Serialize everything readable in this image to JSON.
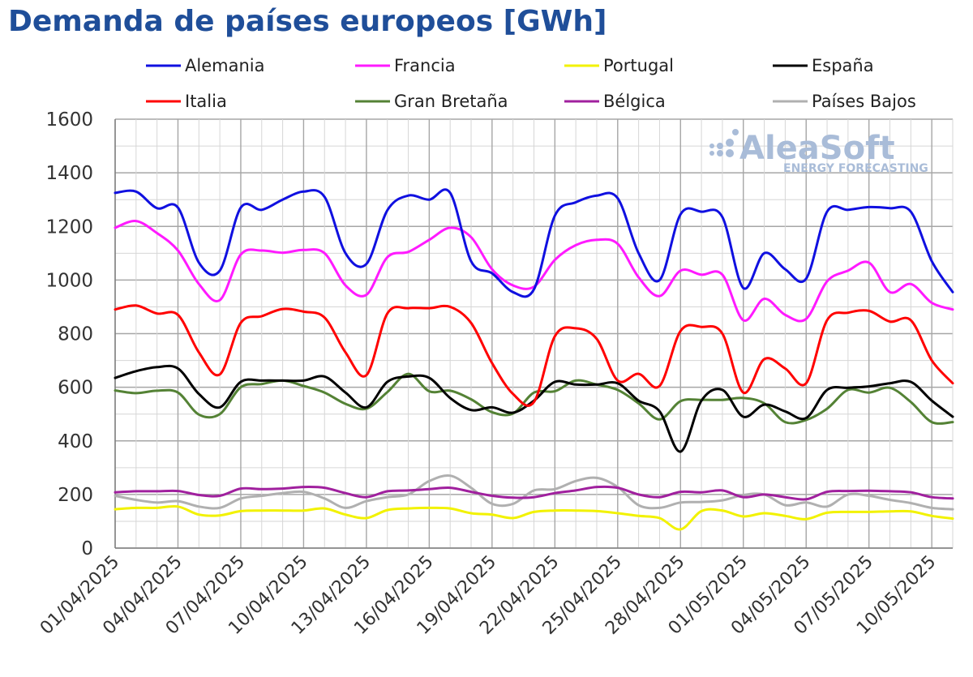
{
  "chart_data": {
    "type": "line",
    "title": "Demanda de países europeos [GWh]",
    "xlabel": "",
    "ylabel": "",
    "ylim": [
      0,
      1600
    ],
    "yticks": [
      0,
      200,
      400,
      600,
      800,
      1000,
      1200,
      1400,
      1600
    ],
    "grid": true,
    "legend_position": "top",
    "x": [
      "01/04/2025",
      "02/04/2025",
      "03/04/2025",
      "04/04/2025",
      "05/04/2025",
      "06/04/2025",
      "07/04/2025",
      "08/04/2025",
      "09/04/2025",
      "10/04/2025",
      "11/04/2025",
      "12/04/2025",
      "13/04/2025",
      "14/04/2025",
      "15/04/2025",
      "16/04/2025",
      "17/04/2025",
      "18/04/2025",
      "19/04/2025",
      "20/04/2025",
      "21/04/2025",
      "22/04/2025",
      "23/04/2025",
      "24/04/2025",
      "25/04/2025",
      "26/04/2025",
      "27/04/2025",
      "28/04/2025",
      "29/04/2025",
      "30/04/2025",
      "01/05/2025",
      "02/05/2025",
      "03/05/2025",
      "04/05/2025",
      "05/05/2025",
      "06/05/2025",
      "07/05/2025",
      "08/05/2025",
      "09/05/2025",
      "10/05/2025",
      "11/05/2025"
    ],
    "x_tick_labels": [
      "01/04/2025",
      "04/04/2025",
      "07/04/2025",
      "10/04/2025",
      "13/04/2025",
      "16/04/2025",
      "19/04/2025",
      "22/04/2025",
      "25/04/2025",
      "28/04/2025",
      "01/05/2025",
      "04/05/2025",
      "07/05/2025",
      "10/05/2025"
    ],
    "series": [
      {
        "name": "Alemania",
        "color": "#1010e0",
        "values": [
          1325,
          1330,
          1268,
          1270,
          1065,
          1035,
          1270,
          1262,
          1300,
          1330,
          1310,
          1100,
          1060,
          1260,
          1315,
          1300,
          1325,
          1070,
          1025,
          955,
          965,
          1240,
          1290,
          1315,
          1305,
          1100,
          1000,
          1245,
          1255,
          1235,
          970,
          1100,
          1040,
          1005,
          1255,
          1262,
          1272,
          1268,
          1255,
          1070,
          955
        ]
      },
      {
        "name": "Francia",
        "color": "#ff1aff",
        "values": [
          1195,
          1220,
          1175,
          1110,
          985,
          925,
          1095,
          1110,
          1102,
          1112,
          1100,
          980,
          945,
          1085,
          1105,
          1150,
          1195,
          1160,
          1040,
          980,
          975,
          1075,
          1130,
          1150,
          1135,
          1010,
          940,
          1035,
          1020,
          1020,
          850,
          930,
          870,
          855,
          995,
          1035,
          1065,
          955,
          985,
          915,
          890
        ]
      },
      {
        "name": "Portugal",
        "color": "#f2f200",
        "values": [
          145,
          150,
          150,
          155,
          125,
          122,
          138,
          140,
          140,
          140,
          148,
          125,
          112,
          142,
          148,
          150,
          148,
          130,
          125,
          112,
          135,
          140,
          140,
          138,
          130,
          120,
          112,
          70,
          138,
          140,
          118,
          130,
          120,
          108,
          132,
          135,
          135,
          137,
          137,
          120,
          110
        ]
      },
      {
        "name": "España",
        "color": "#000000",
        "values": [
          635,
          660,
          675,
          670,
          575,
          525,
          620,
          625,
          625,
          625,
          640,
          580,
          525,
          620,
          640,
          635,
          560,
          515,
          525,
          505,
          550,
          620,
          610,
          610,
          615,
          550,
          510,
          360,
          550,
          590,
          490,
          535,
          510,
          485,
          590,
          598,
          603,
          615,
          620,
          550,
          490
        ]
      },
      {
        "name": "Italia",
        "color": "#ff0000",
        "values": [
          890,
          905,
          875,
          870,
          730,
          648,
          840,
          865,
          892,
          882,
          860,
          730,
          645,
          875,
          895,
          895,
          900,
          840,
          690,
          575,
          545,
          790,
          820,
          780,
          625,
          650,
          605,
          810,
          825,
          800,
          580,
          705,
          670,
          615,
          850,
          878,
          885,
          845,
          850,
          700,
          615
        ]
      },
      {
        "name": "Gran Bretaña",
        "color": "#548235",
        "values": [
          588,
          578,
          587,
          580,
          498,
          500,
          600,
          612,
          625,
          605,
          580,
          538,
          520,
          582,
          650,
          585,
          587,
          555,
          507,
          502,
          580,
          585,
          625,
          610,
          590,
          540,
          480,
          548,
          553,
          553,
          560,
          540,
          470,
          478,
          520,
          590,
          580,
          598,
          545,
          470,
          470
        ]
      },
      {
        "name": "Bélgica",
        "color": "#a0209e",
        "values": [
          208,
          212,
          212,
          213,
          198,
          195,
          222,
          220,
          222,
          228,
          225,
          205,
          190,
          212,
          215,
          220,
          225,
          210,
          195,
          188,
          190,
          205,
          215,
          228,
          225,
          200,
          190,
          210,
          208,
          215,
          190,
          200,
          190,
          182,
          210,
          213,
          214,
          212,
          208,
          190,
          185
        ]
      },
      {
        "name": "Países Bajos",
        "color": "#b0b0b0",
        "values": [
          195,
          180,
          170,
          175,
          155,
          150,
          185,
          195,
          205,
          210,
          185,
          150,
          175,
          190,
          200,
          250,
          270,
          225,
          165,
          165,
          215,
          220,
          250,
          262,
          228,
          160,
          150,
          170,
          172,
          178,
          198,
          200,
          160,
          170,
          155,
          200,
          195,
          180,
          168,
          150,
          145
        ]
      }
    ]
  },
  "watermark": {
    "brand": "AleaSoft",
    "tagline": "ENERGY FORECASTING"
  }
}
